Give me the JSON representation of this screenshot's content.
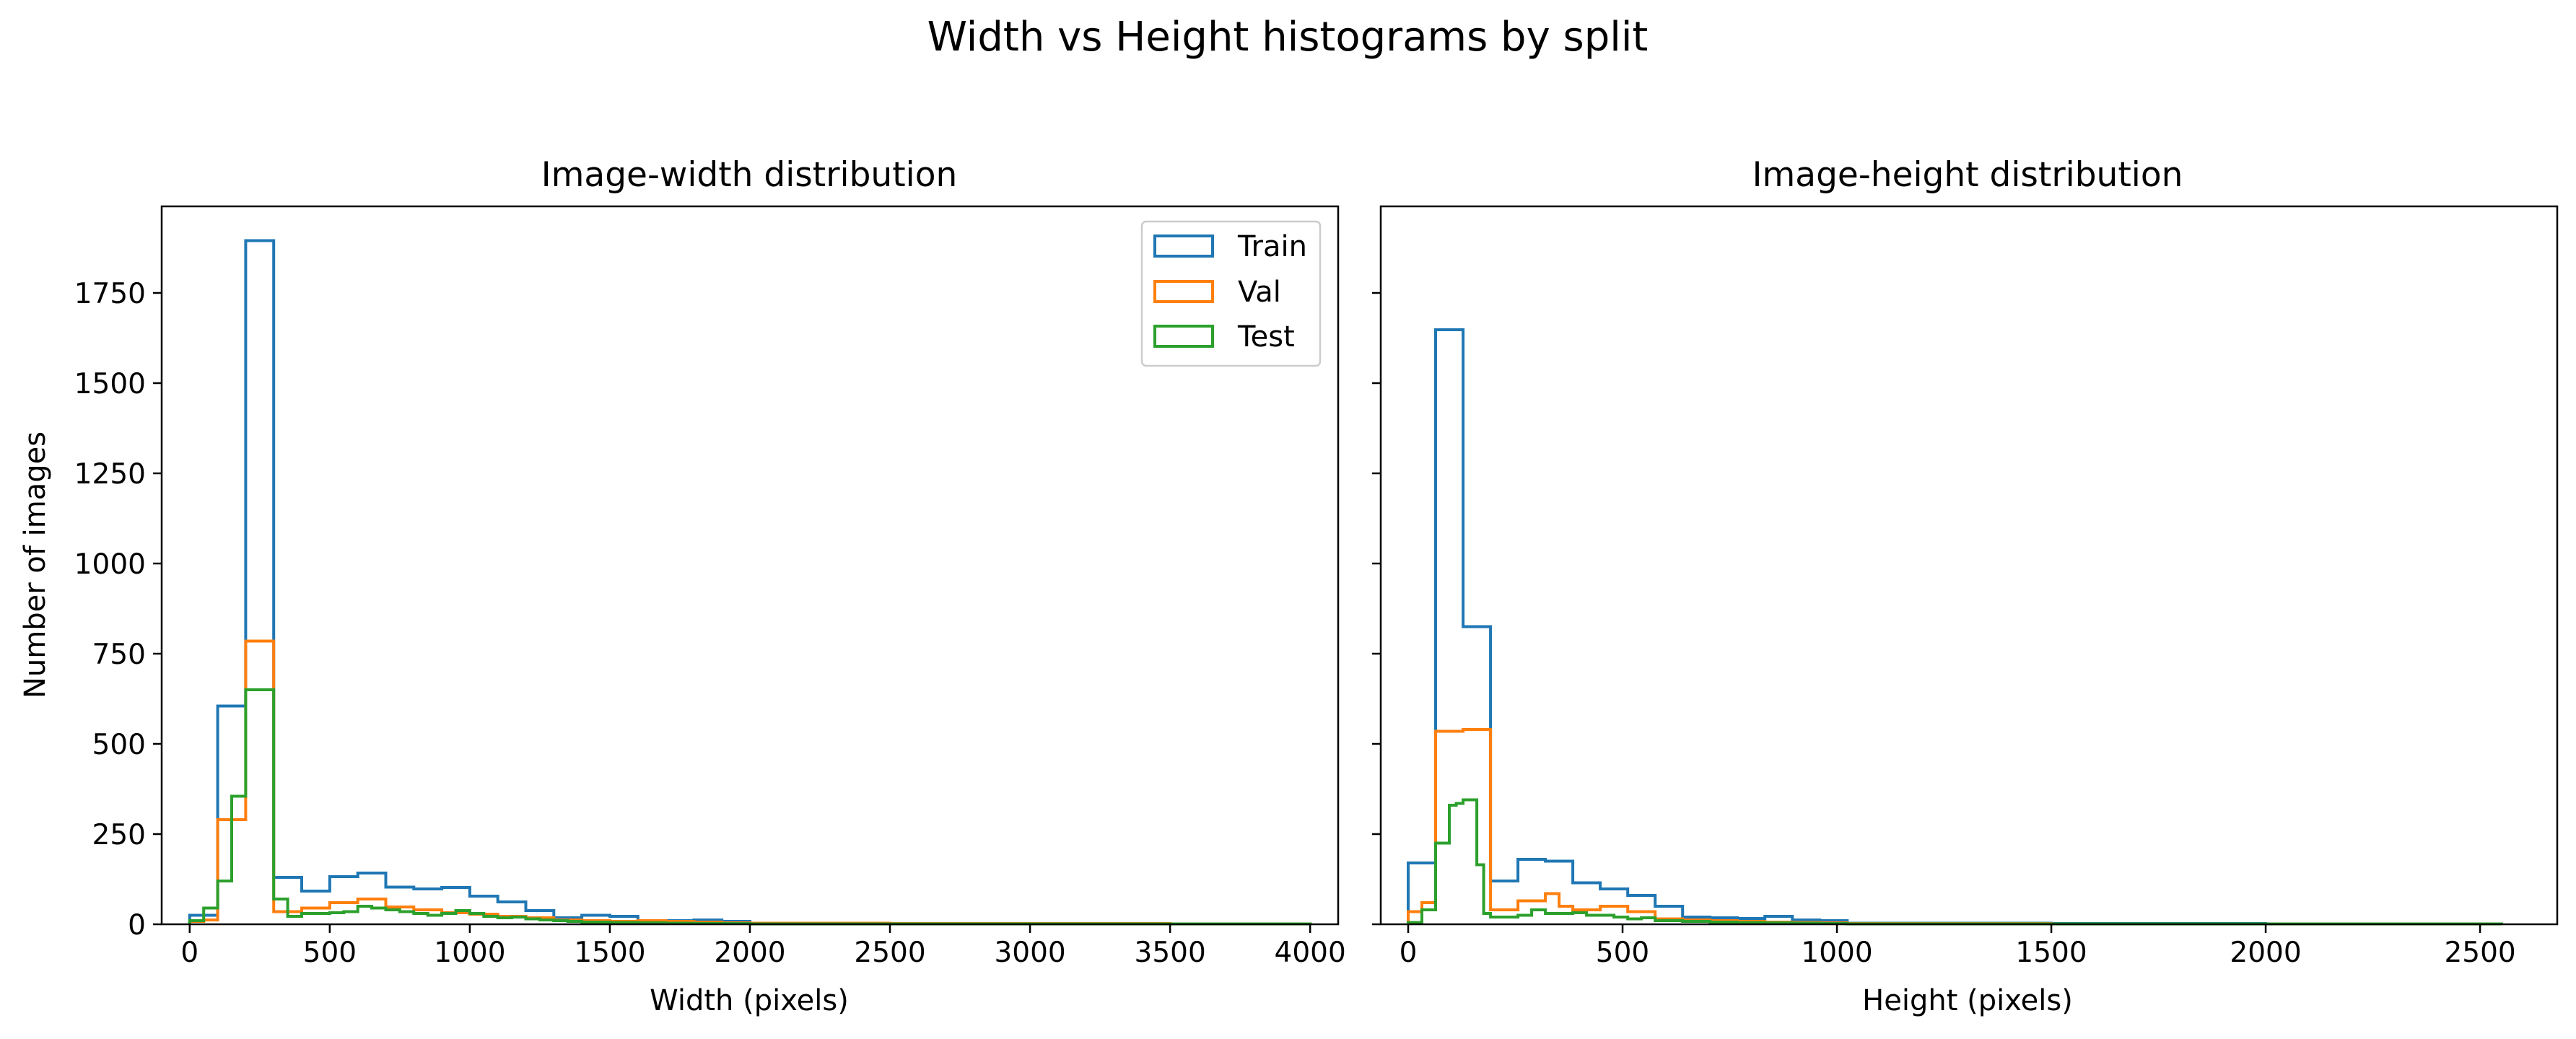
{
  "figure": {
    "suptitle": "Width vs Height histograms by split"
  },
  "legend": {
    "position": "top-right",
    "entries": [
      "Train",
      "Val",
      "Test"
    ]
  },
  "chart_data": [
    {
      "type": "histogram",
      "title": "Image-width distribution",
      "xlabel": "Width (pixels)",
      "ylabel": "Number of images",
      "xlim": [
        -100,
        4100
      ],
      "ylim": [
        0,
        1990
      ],
      "xticks": [
        0,
        500,
        1000,
        1500,
        2000,
        2500,
        3000,
        3500,
        4000
      ],
      "yticks": [
        0,
        250,
        500,
        750,
        1000,
        1250,
        1500,
        1750
      ],
      "grid": false,
      "series": [
        {
          "name": "Train",
          "color": "#1f77b4",
          "bin_edges": [
            0,
            100,
            200,
            300,
            400,
            500,
            600,
            700,
            800,
            900,
            1000,
            1100,
            1200,
            1300,
            1400,
            1500,
            1600,
            1700,
            1800,
            1900,
            2000,
            2500,
            3000,
            3500,
            4000
          ],
          "counts": [
            25,
            605,
            1895,
            130,
            92,
            132,
            142,
            103,
            98,
            102,
            78,
            62,
            38,
            18,
            25,
            22,
            8,
            10,
            12,
            8,
            3,
            2,
            1,
            1
          ]
        },
        {
          "name": "Val",
          "color": "#ff7f0e",
          "bin_edges": [
            0,
            50,
            100,
            150,
            200,
            250,
            300,
            350,
            400,
            450,
            500,
            550,
            600,
            650,
            700,
            750,
            800,
            850,
            900,
            950,
            1000,
            1100,
            1200,
            1300,
            1400,
            1500,
            1600,
            1700,
            1800,
            1900,
            2000,
            2500,
            3000,
            3500,
            4000
          ],
          "counts": [
            8,
            12,
            290,
            290,
            785,
            785,
            35,
            35,
            45,
            45,
            60,
            60,
            70,
            70,
            48,
            48,
            40,
            40,
            32,
            32,
            28,
            22,
            18,
            12,
            10,
            8,
            10,
            8,
            6,
            4,
            3,
            2,
            2,
            1
          ]
        },
        {
          "name": "Test",
          "color": "#2ca02c",
          "bin_edges": [
            0,
            50,
            100,
            150,
            200,
            250,
            300,
            350,
            400,
            450,
            500,
            550,
            600,
            650,
            700,
            750,
            800,
            850,
            900,
            950,
            1000,
            1050,
            1100,
            1150,
            1200,
            1250,
            1300,
            1350,
            1400,
            1500,
            1600,
            1700,
            1800,
            1900,
            2000,
            2500,
            3000,
            3500,
            4000
          ],
          "counts": [
            10,
            45,
            120,
            355,
            650,
            650,
            70,
            22,
            30,
            30,
            32,
            35,
            50,
            45,
            40,
            35,
            30,
            25,
            30,
            38,
            30,
            22,
            18,
            20,
            15,
            12,
            10,
            8,
            6,
            5,
            4,
            3,
            2,
            2,
            1,
            1,
            1,
            1
          ]
        }
      ]
    },
    {
      "type": "histogram",
      "title": "Image-height distribution",
      "xlabel": "Height (pixels)",
      "ylabel": "",
      "xlim": [
        -64,
        2680
      ],
      "ylim": [
        0,
        1990
      ],
      "xticks": [
        0,
        500,
        1000,
        1500,
        2000,
        2500
      ],
      "yticks": [
        0,
        250,
        500,
        750,
        1000,
        1250,
        1500,
        1750
      ],
      "grid": false,
      "series": [
        {
          "name": "Train",
          "color": "#1f77b4",
          "bin_edges": [
            0,
            64,
            128,
            192,
            256,
            320,
            384,
            448,
            512,
            576,
            640,
            704,
            768,
            832,
            896,
            960,
            1024,
            1500,
            2000,
            2550
          ],
          "counts": [
            170,
            1648,
            825,
            120,
            180,
            175,
            115,
            98,
            80,
            50,
            20,
            18,
            16,
            22,
            12,
            10,
            3,
            2,
            1
          ]
        },
        {
          "name": "Val",
          "color": "#ff7f0e",
          "bin_edges": [
            0,
            32,
            64,
            96,
            128,
            160,
            192,
            224,
            256,
            288,
            320,
            352,
            384,
            416,
            448,
            480,
            512,
            544,
            576,
            608,
            640,
            704,
            768,
            832,
            896,
            960,
            1024,
            1500,
            2000,
            2550
          ],
          "counts": [
            35,
            60,
            535,
            535,
            540,
            540,
            40,
            40,
            65,
            65,
            85,
            50,
            40,
            40,
            50,
            50,
            35,
            35,
            15,
            15,
            12,
            10,
            8,
            6,
            5,
            4,
            2,
            1,
            1
          ]
        },
        {
          "name": "Test",
          "color": "#2ca02c",
          "bin_edges": [
            0,
            32,
            64,
            80,
            96,
            112,
            128,
            144,
            160,
            176,
            192,
            224,
            256,
            288,
            320,
            352,
            384,
            416,
            448,
            480,
            512,
            544,
            576,
            608,
            640,
            704,
            768,
            832,
            896,
            960,
            1024,
            1500,
            2000,
            2550
          ],
          "counts": [
            5,
            40,
            225,
            225,
            330,
            335,
            345,
            345,
            165,
            30,
            20,
            20,
            25,
            40,
            30,
            30,
            32,
            25,
            25,
            20,
            15,
            18,
            10,
            10,
            8,
            6,
            5,
            4,
            3,
            2,
            1,
            1,
            1
          ]
        }
      ]
    }
  ]
}
